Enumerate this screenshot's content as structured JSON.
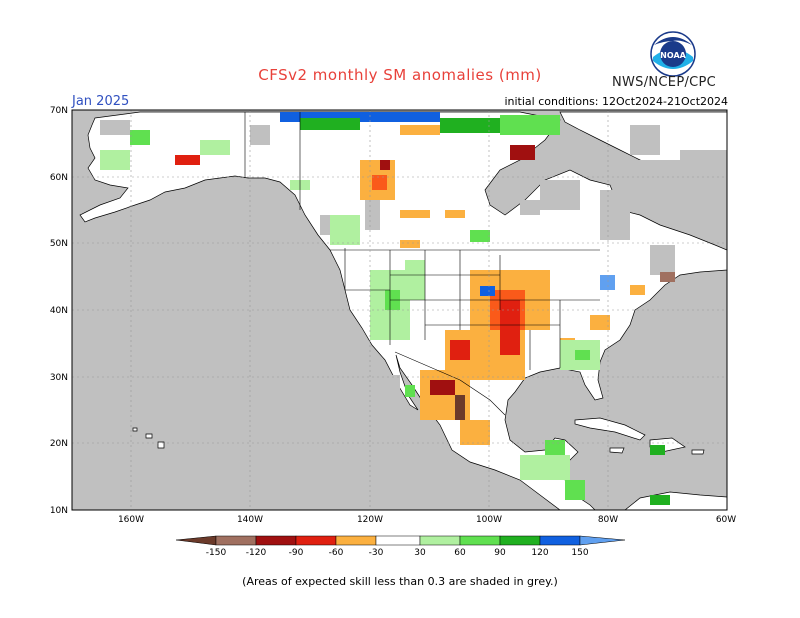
{
  "title": "CFSv2 monthly SM anomalies (mm)",
  "agency": "NWS/NCEP/CPC",
  "logo_text": "NOAA",
  "forecast_month": "Jan 2025",
  "initial_conditions": "initial conditions: 12Oct2024-21Oct2024",
  "footnote": "(Areas of expected skill less than 0.3 are shaded in grey.)",
  "lat_labels": [
    "70N",
    "60N",
    "50N",
    "40N",
    "30N",
    "20N",
    "10N"
  ],
  "lon_labels": [
    "160W",
    "140W",
    "120W",
    "100W",
    "80W",
    "60W"
  ],
  "legend": {
    "ticks": [
      "-150",
      "-120",
      "-90",
      "-60",
      "-30",
      "30",
      "60",
      "90",
      "120",
      "150"
    ],
    "colors": [
      "#6b3a2a",
      "#a07060",
      "#a01010",
      "#e02010",
      "#fa5a1a",
      "#fbb040",
      "#ffffff",
      "#b0f0a0",
      "#60e050",
      "#20b020",
      "#1060e0",
      "#60a0f0"
    ]
  },
  "colors": {
    "ocean": "#c0c0c0",
    "land": "#ffffff",
    "low_skill": "#c0c0c0",
    "border": "#000000",
    "title": "#e8413a",
    "month": "#3050c0"
  }
}
